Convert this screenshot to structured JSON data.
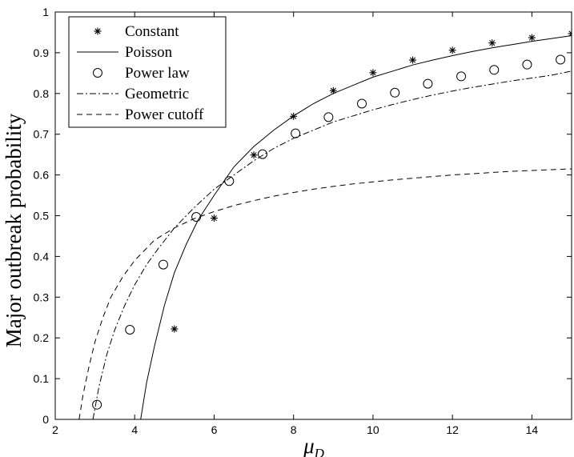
{
  "chart_data": {
    "type": "line",
    "xlabel": "μ",
    "xlabel_subscript": "D",
    "ylabel": "Major outbreak probability",
    "xlim": [
      2,
      15
    ],
    "ylim": [
      0,
      1
    ],
    "x_ticks": [
      "2",
      "4",
      "6",
      "8",
      "10",
      "12",
      "14"
    ],
    "y_ticks": [
      "0",
      "0.1",
      "0.2",
      "0.3",
      "0.4",
      "0.5",
      "0.6",
      "0.7",
      "0.8",
      "0.9",
      "1"
    ],
    "grid": false,
    "legend_position": "top-left",
    "series": [
      {
        "name": "Constant",
        "style": "star-markers",
        "x": [
          5,
          6,
          7,
          8,
          9,
          10,
          11,
          12,
          13,
          14,
          15
        ],
        "y": [
          0.222,
          0.494,
          0.649,
          0.744,
          0.807,
          0.851,
          0.882,
          0.906,
          0.924,
          0.937,
          0.947
        ]
      },
      {
        "name": "Poisson",
        "style": "solid-line",
        "x": [
          4.15,
          4.3,
          4.5,
          4.75,
          5,
          5.3,
          5.6,
          6,
          6.5,
          7,
          7.5,
          8,
          8.5,
          9,
          9.5,
          10,
          10.5,
          11,
          11.5,
          12,
          12.5,
          13,
          13.5,
          14,
          14.5,
          15
        ],
        "y": [
          0.0,
          0.09,
          0.18,
          0.28,
          0.36,
          0.43,
          0.49,
          0.55,
          0.62,
          0.67,
          0.71,
          0.745,
          0.775,
          0.8,
          0.82,
          0.84,
          0.855,
          0.87,
          0.882,
          0.893,
          0.903,
          0.912,
          0.92,
          0.928,
          0.935,
          0.942
        ]
      },
      {
        "name": "Power law",
        "style": "circle-markers",
        "x": [
          3.05,
          3.88,
          4.72,
          5.55,
          6.38,
          7.22,
          8.05,
          8.88,
          9.72,
          10.55,
          11.38,
          12.22,
          13.05,
          13.88,
          14.72
        ],
        "y": [
          0.036,
          0.22,
          0.38,
          0.497,
          0.585,
          0.651,
          0.702,
          0.742,
          0.775,
          0.802,
          0.824,
          0.842,
          0.858,
          0.871,
          0.883
        ]
      },
      {
        "name": "Geometric",
        "style": "dash-dot-line",
        "x": [
          2.95,
          3.1,
          3.3,
          3.5,
          3.75,
          4,
          4.3,
          4.6,
          5,
          5.5,
          6,
          6.5,
          7,
          7.5,
          8,
          8.5,
          9,
          9.5,
          10,
          10.5,
          11,
          11.5,
          12,
          12.5,
          13,
          13.5,
          14,
          14.5,
          15
        ],
        "y": [
          0.0,
          0.08,
          0.16,
          0.22,
          0.28,
          0.33,
          0.38,
          0.42,
          0.47,
          0.52,
          0.565,
          0.6,
          0.635,
          0.665,
          0.69,
          0.71,
          0.73,
          0.745,
          0.76,
          0.773,
          0.785,
          0.796,
          0.806,
          0.815,
          0.823,
          0.831,
          0.838,
          0.845,
          0.855
        ]
      },
      {
        "name": "Power cutoff",
        "style": "dashed-line",
        "x": [
          2.6,
          2.7,
          2.85,
          3.0,
          3.2,
          3.4,
          3.7,
          4,
          4.5,
          5,
          5.5,
          6,
          6.5,
          7,
          7.5,
          8,
          8.5,
          9,
          9.5,
          10,
          10.5,
          11,
          11.5,
          12,
          12.5,
          13,
          13.5,
          14,
          14.5,
          15
        ],
        "y": [
          0.0,
          0.06,
          0.13,
          0.19,
          0.25,
          0.3,
          0.35,
          0.39,
          0.44,
          0.47,
          0.493,
          0.51,
          0.525,
          0.537,
          0.548,
          0.557,
          0.565,
          0.572,
          0.578,
          0.583,
          0.588,
          0.592,
          0.596,
          0.6,
          0.603,
          0.606,
          0.609,
          0.611,
          0.613,
          0.615
        ]
      }
    ]
  }
}
